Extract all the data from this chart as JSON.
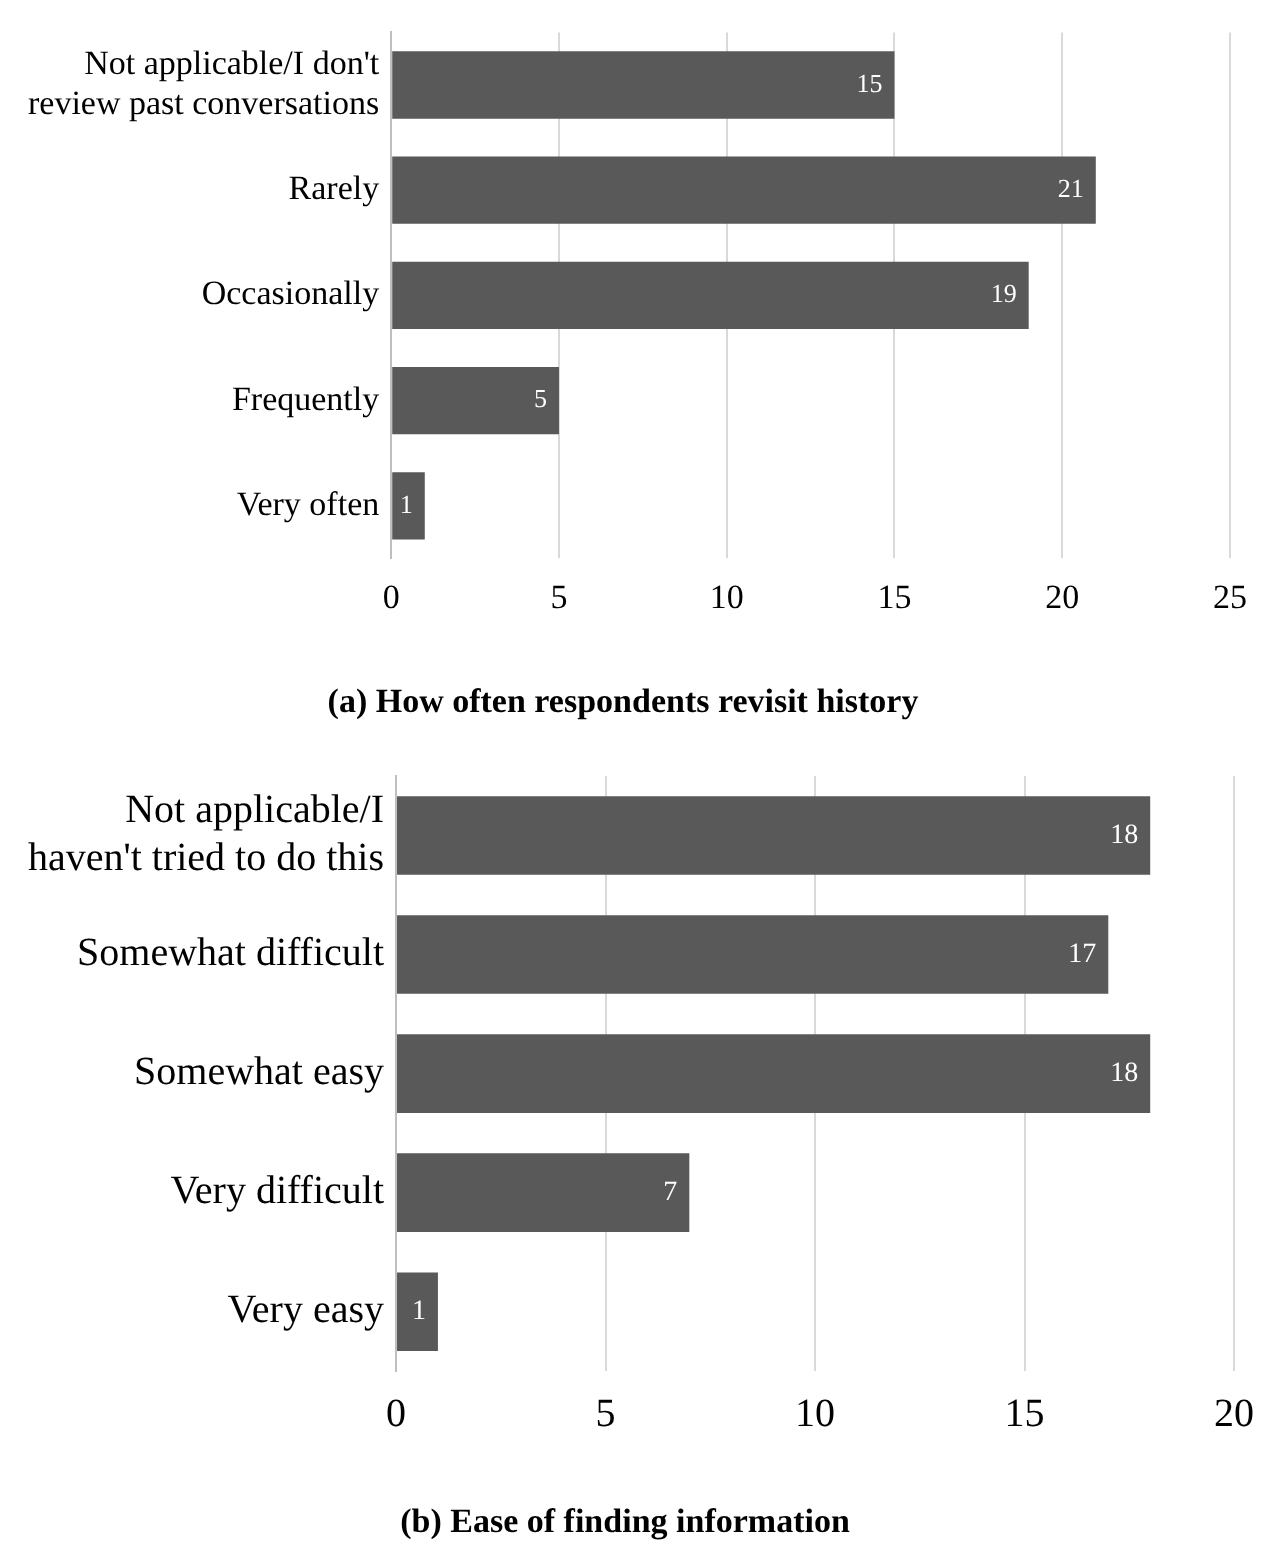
{
  "chart_data": [
    {
      "type": "bar",
      "orientation": "horizontal",
      "title": "(a) How often respondents revisit history",
      "categories": [
        "Not applicable/I don't review past conversations",
        "Rarely",
        "Occasionally",
        "Frequently",
        "Very often"
      ],
      "values": [
        15,
        21,
        19,
        5,
        1
      ],
      "color": "#595959",
      "xlim": [
        0,
        25
      ],
      "xticks": [
        0,
        5,
        10,
        15,
        20,
        25
      ],
      "grid": "x",
      "data_labels": true
    },
    {
      "type": "bar",
      "orientation": "horizontal",
      "title": "(b) Ease of finding information",
      "categories": [
        "Not applicable/I haven't tried to do this",
        "Somewhat difficult",
        "Somewhat easy",
        "Very difficult",
        "Very easy"
      ],
      "values": [
        18,
        17,
        18,
        7,
        1
      ],
      "color": "#595959",
      "xlim": [
        0,
        20
      ],
      "xticks": [
        0,
        5,
        10,
        15,
        20
      ],
      "grid": "x",
      "data_labels": true
    }
  ]
}
